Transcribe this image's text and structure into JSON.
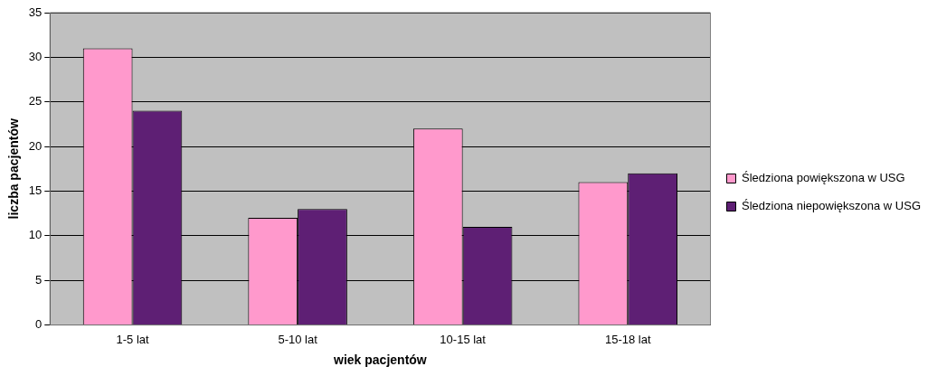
{
  "chart_data": {
    "type": "bar",
    "xlabel": "wiek pacjentów",
    "ylabel": "liczba pacjentów",
    "categories": [
      "1-5 lat",
      "5-10 lat",
      "10-15 lat",
      "15-18 lat"
    ],
    "series": [
      {
        "name": "Śledziona powiększona w USG",
        "color": "#ff99cc",
        "values": [
          31,
          12,
          22,
          16
        ]
      },
      {
        "name": "Śledziona niepowiększona w USG",
        "color": "#5e1f74",
        "values": [
          24,
          13,
          11,
          17
        ]
      }
    ],
    "ylim": [
      0,
      35
    ],
    "yticks": [
      0,
      5,
      10,
      15,
      20,
      25,
      30,
      35
    ],
    "grid": "y",
    "legend": "right"
  }
}
